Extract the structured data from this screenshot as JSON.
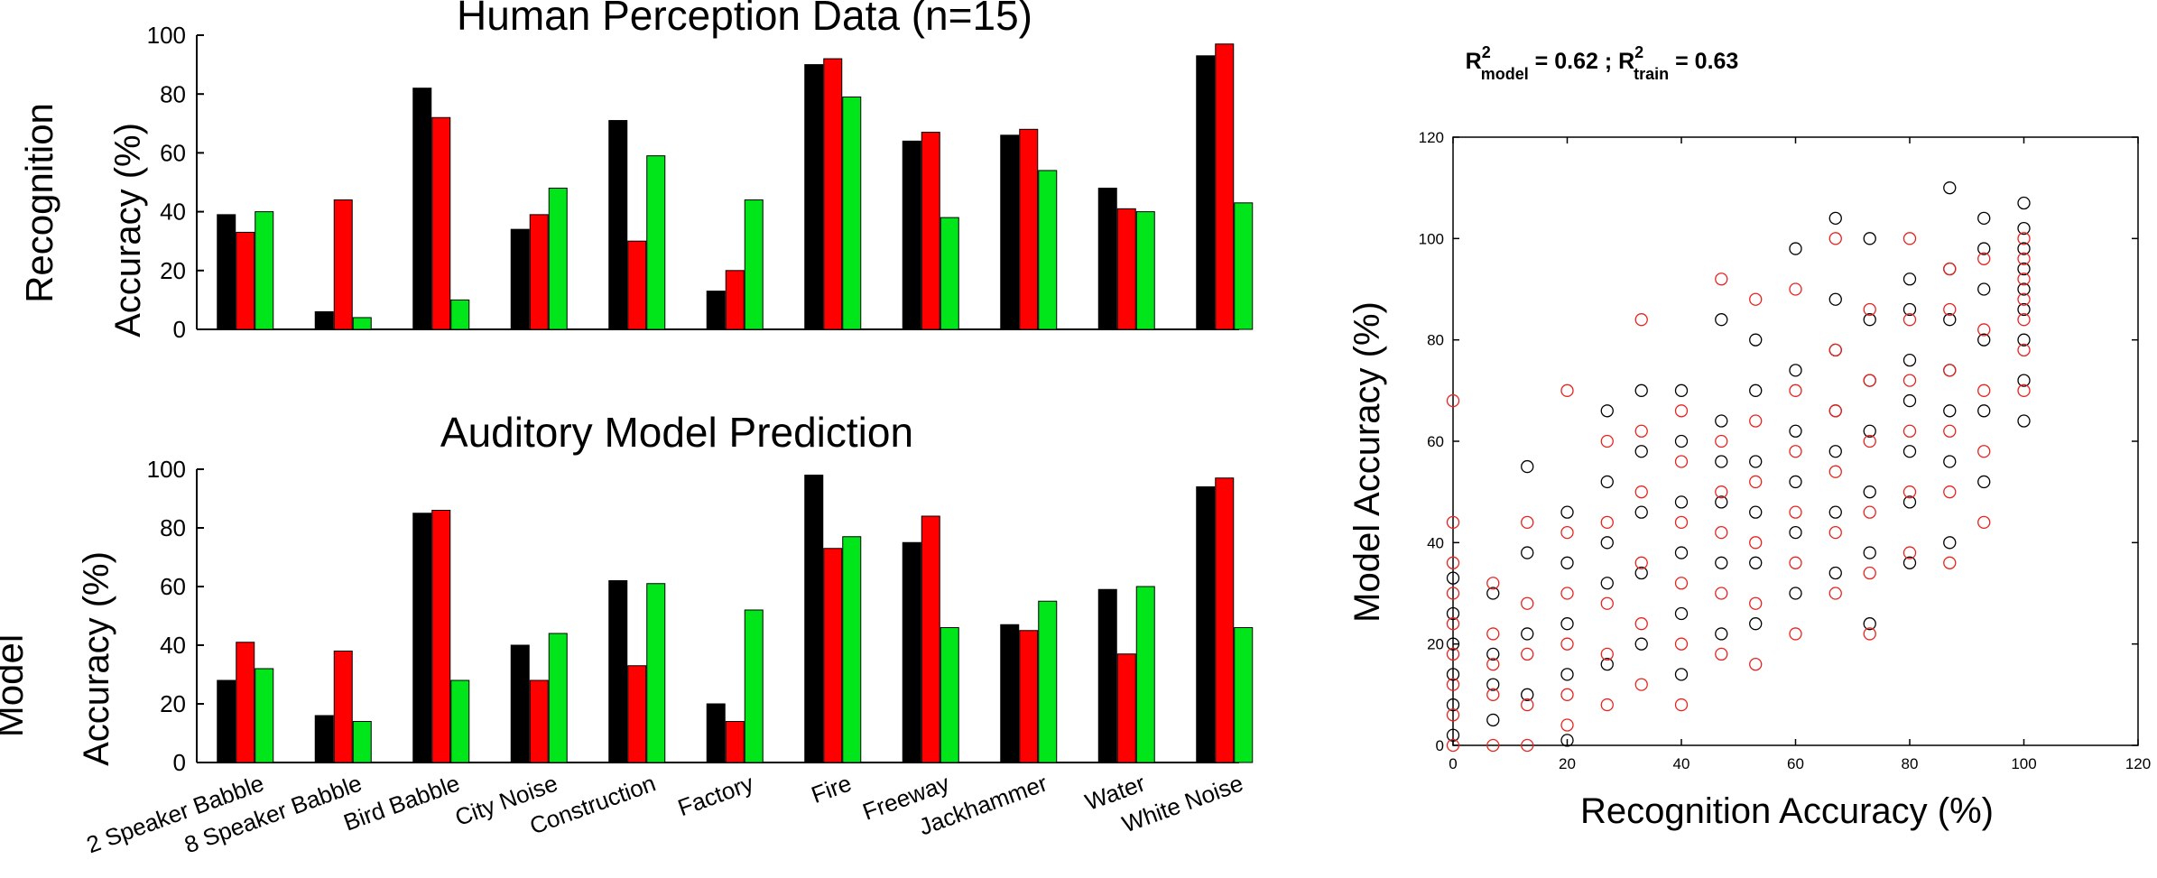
{
  "colors": {
    "series": [
      "#000000",
      "#ff0000",
      "#00e61a"
    ],
    "scatter": [
      "#000000",
      "#e8231f"
    ],
    "axis": "#000000"
  },
  "chart_data": [
    {
      "id": "perception",
      "type": "bar",
      "title": "Human Perception Data (n=15)",
      "row_label": "Recognition",
      "ylabel": "Accuracy (%)",
      "ylim": [
        0,
        100
      ],
      "yticks": [
        "0",
        "20",
        "40",
        "60",
        "80",
        "100"
      ],
      "categories": [
        "2 Speaker Babble",
        "8 Speaker Babble",
        "Bird Babble",
        "City Noise",
        "Construction",
        "Factory",
        "Fire",
        "Freeway",
        "Jackhammer",
        "Water",
        "White Noise"
      ],
      "series": [
        {
          "values": [
            39,
            6,
            82,
            34,
            71,
            13,
            90,
            64,
            66,
            48,
            93
          ]
        },
        {
          "values": [
            33,
            44,
            72,
            39,
            30,
            20,
            92,
            67,
            68,
            41,
            97
          ]
        },
        {
          "values": [
            40,
            4,
            10,
            48,
            59,
            44,
            79,
            38,
            54,
            40,
            43
          ]
        }
      ]
    },
    {
      "id": "model",
      "type": "bar",
      "title": "Auditory Model Prediction",
      "row_label": "Model",
      "ylabel": "Accuracy (%)",
      "ylim": [
        0,
        100
      ],
      "yticks": [
        "0",
        "20",
        "40",
        "60",
        "80",
        "100"
      ],
      "categories": [
        "2 Speaker Babble",
        "8 Speaker Babble",
        "Bird Babble",
        "City Noise",
        "Construction",
        "Factory",
        "Fire",
        "Freeway",
        "Jackhammer",
        "Water",
        "White Noise"
      ],
      "series": [
        {
          "values": [
            28,
            16,
            85,
            40,
            62,
            20,
            98,
            75,
            47,
            59,
            94
          ]
        },
        {
          "values": [
            41,
            38,
            86,
            28,
            33,
            14,
            73,
            84,
            45,
            37,
            97
          ]
        },
        {
          "values": [
            32,
            14,
            28,
            44,
            61,
            52,
            77,
            46,
            55,
            60,
            46
          ]
        }
      ]
    },
    {
      "id": "scatter",
      "type": "scatter",
      "title_main": "R",
      "title_sup1": "2",
      "title_sub1": "model",
      "title_mid": " = 0.62 ; R",
      "title_sup2": "2",
      "title_sub2": "train",
      "title_end": " = 0.63",
      "xlabel": "Recognition Accuracy (%)",
      "ylabel": "Model Accuracy (%)",
      "xlim": [
        0,
        120
      ],
      "ylim": [
        0,
        120
      ],
      "xticks": [
        "0",
        "20",
        "40",
        "60",
        "80",
        "100",
        "120"
      ],
      "yticks": [
        "0",
        "20",
        "40",
        "60",
        "80",
        "100",
        "120"
      ],
      "series": [
        {
          "points": [
            [
              0,
              2
            ],
            [
              0,
              8
            ],
            [
              0,
              14
            ],
            [
              0,
              20
            ],
            [
              0,
              26
            ],
            [
              0,
              33
            ],
            [
              7,
              5
            ],
            [
              7,
              12
            ],
            [
              7,
              18
            ],
            [
              7,
              30
            ],
            [
              13,
              10
            ],
            [
              13,
              22
            ],
            [
              13,
              38
            ],
            [
              13,
              55
            ],
            [
              20,
              1
            ],
            [
              20,
              14
            ],
            [
              20,
              24
            ],
            [
              20,
              36
            ],
            [
              20,
              46
            ],
            [
              27,
              16
            ],
            [
              27,
              32
            ],
            [
              27,
              40
            ],
            [
              27,
              52
            ],
            [
              27,
              66
            ],
            [
              33,
              20
            ],
            [
              33,
              34
            ],
            [
              33,
              46
            ],
            [
              33,
              58
            ],
            [
              33,
              70
            ],
            [
              40,
              14
            ],
            [
              40,
              26
            ],
            [
              40,
              38
            ],
            [
              40,
              48
            ],
            [
              40,
              60
            ],
            [
              40,
              70
            ],
            [
              47,
              22
            ],
            [
              47,
              36
            ],
            [
              47,
              48
            ],
            [
              47,
              56
            ],
            [
              47,
              64
            ],
            [
              47,
              84
            ],
            [
              53,
              24
            ],
            [
              53,
              36
            ],
            [
              53,
              46
            ],
            [
              53,
              56
            ],
            [
              53,
              70
            ],
            [
              53,
              80
            ],
            [
              60,
              30
            ],
            [
              60,
              42
            ],
            [
              60,
              52
            ],
            [
              60,
              62
            ],
            [
              60,
              74
            ],
            [
              60,
              98
            ],
            [
              67,
              34
            ],
            [
              67,
              46
            ],
            [
              67,
              58
            ],
            [
              67,
              66
            ],
            [
              67,
              78
            ],
            [
              67,
              88
            ],
            [
              67,
              104
            ],
            [
              73,
              24
            ],
            [
              73,
              38
            ],
            [
              73,
              50
            ],
            [
              73,
              62
            ],
            [
              73,
              72
            ],
            [
              73,
              84
            ],
            [
              73,
              100
            ],
            [
              80,
              36
            ],
            [
              80,
              48
            ],
            [
              80,
              58
            ],
            [
              80,
              68
            ],
            [
              80,
              76
            ],
            [
              80,
              86
            ],
            [
              80,
              92
            ],
            [
              87,
              40
            ],
            [
              87,
              56
            ],
            [
              87,
              66
            ],
            [
              87,
              74
            ],
            [
              87,
              84
            ],
            [
              87,
              94
            ],
            [
              87,
              110
            ],
            [
              93,
              52
            ],
            [
              93,
              66
            ],
            [
              93,
              80
            ],
            [
              93,
              90
            ],
            [
              93,
              98
            ],
            [
              93,
              104
            ],
            [
              100,
              64
            ],
            [
              100,
              72
            ],
            [
              100,
              80
            ],
            [
              100,
              86
            ],
            [
              100,
              90
            ],
            [
              100,
              94
            ],
            [
              100,
              98
            ],
            [
              100,
              102
            ],
            [
              100,
              107
            ]
          ]
        },
        {
          "points": [
            [
              0,
              0
            ],
            [
              0,
              6
            ],
            [
              0,
              12
            ],
            [
              0,
              18
            ],
            [
              0,
              24
            ],
            [
              0,
              30
            ],
            [
              0,
              36
            ],
            [
              0,
              44
            ],
            [
              0,
              68
            ],
            [
              7,
              0
            ],
            [
              7,
              10
            ],
            [
              7,
              16
            ],
            [
              7,
              22
            ],
            [
              7,
              32
            ],
            [
              13,
              0
            ],
            [
              13,
              8
            ],
            [
              13,
              18
            ],
            [
              13,
              28
            ],
            [
              13,
              44
            ],
            [
              20,
              4
            ],
            [
              20,
              10
            ],
            [
              20,
              20
            ],
            [
              20,
              30
            ],
            [
              20,
              42
            ],
            [
              20,
              70
            ],
            [
              27,
              8
            ],
            [
              27,
              18
            ],
            [
              27,
              28
            ],
            [
              27,
              44
            ],
            [
              27,
              60
            ],
            [
              33,
              12
            ],
            [
              33,
              24
            ],
            [
              33,
              36
            ],
            [
              33,
              50
            ],
            [
              33,
              62
            ],
            [
              33,
              84
            ],
            [
              40,
              8
            ],
            [
              40,
              20
            ],
            [
              40,
              32
            ],
            [
              40,
              44
            ],
            [
              40,
              56
            ],
            [
              40,
              66
            ],
            [
              47,
              18
            ],
            [
              47,
              30
            ],
            [
              47,
              42
            ],
            [
              47,
              50
            ],
            [
              47,
              60
            ],
            [
              47,
              92
            ],
            [
              53,
              16
            ],
            [
              53,
              28
            ],
            [
              53,
              40
            ],
            [
              53,
              52
            ],
            [
              53,
              64
            ],
            [
              53,
              88
            ],
            [
              60,
              22
            ],
            [
              60,
              36
            ],
            [
              60,
              46
            ],
            [
              60,
              58
            ],
            [
              60,
              70
            ],
            [
              60,
              90
            ],
            [
              67,
              30
            ],
            [
              67,
              42
            ],
            [
              67,
              54
            ],
            [
              67,
              66
            ],
            [
              67,
              78
            ],
            [
              67,
              100
            ],
            [
              73,
              22
            ],
            [
              73,
              34
            ],
            [
              73,
              46
            ],
            [
              73,
              60
            ],
            [
              73,
              72
            ],
            [
              73,
              86
            ],
            [
              80,
              38
            ],
            [
              80,
              50
            ],
            [
              80,
              62
            ],
            [
              80,
              72
            ],
            [
              80,
              84
            ],
            [
              80,
              100
            ],
            [
              87,
              36
            ],
            [
              87,
              50
            ],
            [
              87,
              62
            ],
            [
              87,
              74
            ],
            [
              87,
              86
            ],
            [
              87,
              94
            ],
            [
              93,
              44
            ],
            [
              93,
              58
            ],
            [
              93,
              70
            ],
            [
              93,
              82
            ],
            [
              93,
              96
            ],
            [
              100,
              70
            ],
            [
              100,
              78
            ],
            [
              100,
              84
            ],
            [
              100,
              88
            ],
            [
              100,
              92
            ],
            [
              100,
              96
            ],
            [
              100,
              100
            ]
          ]
        }
      ]
    }
  ]
}
